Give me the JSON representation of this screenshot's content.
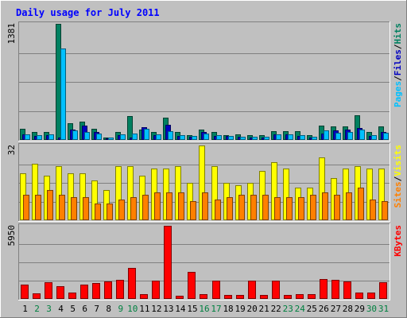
{
  "chart_data": {
    "type": "bar",
    "title": "Daily usage for July 2011",
    "categories": [
      "1",
      "2",
      "3",
      "4",
      "5",
      "6",
      "7",
      "8",
      "9",
      "10",
      "11",
      "12",
      "13",
      "14",
      "15",
      "16",
      "17",
      "18",
      "19",
      "20",
      "21",
      "22",
      "23",
      "24",
      "25",
      "26",
      "27",
      "28",
      "29",
      "30",
      "31"
    ],
    "weekend_days": [
      "2",
      "3",
      "9",
      "10",
      "16",
      "17",
      "23",
      "24",
      "30",
      "31"
    ],
    "panels": [
      {
        "id": "top",
        "ylabel": [
          "Pages",
          "/",
          "Files",
          "/",
          "Hits"
        ],
        "ymax": 1381,
        "ymax_label": "1381",
        "series": [
          {
            "name": "Hits",
            "color": "#008060",
            "values": [
              130,
              90,
              90,
              1381,
              195,
              215,
              130,
              30,
              90,
              285,
              120,
              90,
              265,
              90,
              60,
              120,
              90,
              60,
              65,
              60,
              55,
              100,
              105,
              100,
              60,
              170,
              165,
              165,
              290,
              90,
              165
            ]
          },
          {
            "name": "Files",
            "color": "#0000c0",
            "values": [
              70,
              50,
              55,
              30,
              120,
              170,
              95,
              15,
              60,
              30,
              150,
              60,
              180,
              50,
              40,
              90,
              50,
              45,
              35,
              30,
              30,
              70,
              70,
              50,
              30,
              75,
              110,
              125,
              140,
              50,
              90
            ]
          },
          {
            "name": "Pages",
            "color": "#00c0ff",
            "values": [
              70,
              60,
              65,
              1085,
              110,
              95,
              80,
              25,
              65,
              75,
              130,
              70,
              100,
              60,
              45,
              80,
              55,
              50,
              40,
              40,
              35,
              70,
              70,
              60,
              40,
              110,
              85,
              95,
              120,
              60,
              85
            ]
          }
        ]
      },
      {
        "id": "middle",
        "ylabel": [
          "Sites",
          "/",
          "Visits"
        ],
        "ymax": 32,
        "ymax_label": "32",
        "series": [
          {
            "name": "Visits",
            "color": "#ffff00",
            "values": [
              20,
              24,
              19,
              23,
              20,
              20,
              17,
              13,
              23,
              23,
              19,
              22,
              22,
              23,
              16,
              32,
              23,
              16,
              15,
              16,
              21,
              25,
              22,
              14,
              14,
              27,
              18,
              22,
              23,
              22,
              22
            ]
          },
          {
            "name": "Sites",
            "color": "#ff8000",
            "values": [
              11,
              11,
              13,
              11,
              10,
              10,
              7,
              7,
              9,
              10,
              11,
              12,
              12,
              12,
              8,
              12,
              9,
              10,
              11,
              11,
              11,
              10,
              10,
              10,
              11,
              12,
              11,
              12,
              14,
              9,
              8
            ]
          }
        ]
      },
      {
        "id": "bottom",
        "ylabel": [
          "KBytes"
        ],
        "ymax": 5950,
        "ymax_label": "5950",
        "series": [
          {
            "name": "KBytes",
            "color": "#ff0000",
            "values": [
              1190,
              480,
              1350,
              1020,
              510,
              1190,
              1310,
              1430,
              1560,
              2500,
              420,
              1460,
              5950,
              280,
              2170,
              370,
              1470,
              300,
              300,
              1470,
              340,
              1470,
              340,
              400,
              410,
              1600,
              1550,
              1400,
              510,
              500,
              1350
            ]
          }
        ]
      }
    ]
  },
  "colors": {
    "background": "#c0c0c0",
    "title": "#0000ff",
    "day_weekday": "#000000",
    "day_weekend": "#008040",
    "slash": "#000000"
  }
}
